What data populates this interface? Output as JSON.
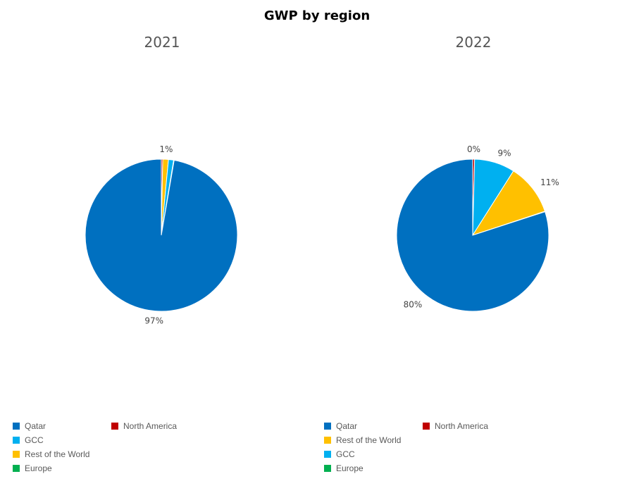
{
  "title": "GWP by region",
  "chart_data": [
    {
      "type": "pie",
      "title": "2021",
      "slices": [
        {
          "label": "North America",
          "value": 0.3,
          "color": "#C00000",
          "data_label": ""
        },
        {
          "label": "Rest of the World",
          "value": 1.2,
          "color": "#FFC000",
          "data_label": "1%"
        },
        {
          "label": "GCC",
          "value": 1.1,
          "color": "#00B0F0",
          "data_label": ""
        },
        {
          "label": "Europe",
          "value": 0.1,
          "color": "#00B050",
          "data_label": ""
        },
        {
          "label": "Qatar",
          "value": 97.3,
          "color": "#0070C0",
          "data_label": "97%"
        }
      ],
      "legend": [
        {
          "label": "Qatar",
          "color": "#0070C0"
        },
        {
          "label": "North America",
          "color": "#C00000"
        },
        {
          "label": "GCC",
          "color": "#00B0F0"
        },
        {
          "label": "Rest of the World",
          "color": "#FFC000"
        },
        {
          "label": "Europe",
          "color": "#00B050"
        }
      ]
    },
    {
      "type": "pie",
      "title": "2022",
      "slices": [
        {
          "label": "North America",
          "value": 0.4,
          "color": "#C00000",
          "data_label": "0%"
        },
        {
          "label": "GCC",
          "value": 8.6,
          "color": "#00B0F0",
          "data_label": "9%"
        },
        {
          "label": "Rest of the World",
          "value": 10.9,
          "color": "#FFC000",
          "data_label": "11%"
        },
        {
          "label": "Europe",
          "value": 0.1,
          "color": "#00B050",
          "data_label": ""
        },
        {
          "label": "Qatar",
          "value": 80.0,
          "color": "#0070C0",
          "data_label": "80%"
        }
      ],
      "legend": [
        {
          "label": "Qatar",
          "color": "#0070C0"
        },
        {
          "label": "North America",
          "color": "#C00000"
        },
        {
          "label": "Rest of the World",
          "color": "#FFC000"
        },
        {
          "label": "GCC",
          "color": "#00B0F0"
        },
        {
          "label": "Europe",
          "color": "#00B050"
        }
      ]
    }
  ]
}
